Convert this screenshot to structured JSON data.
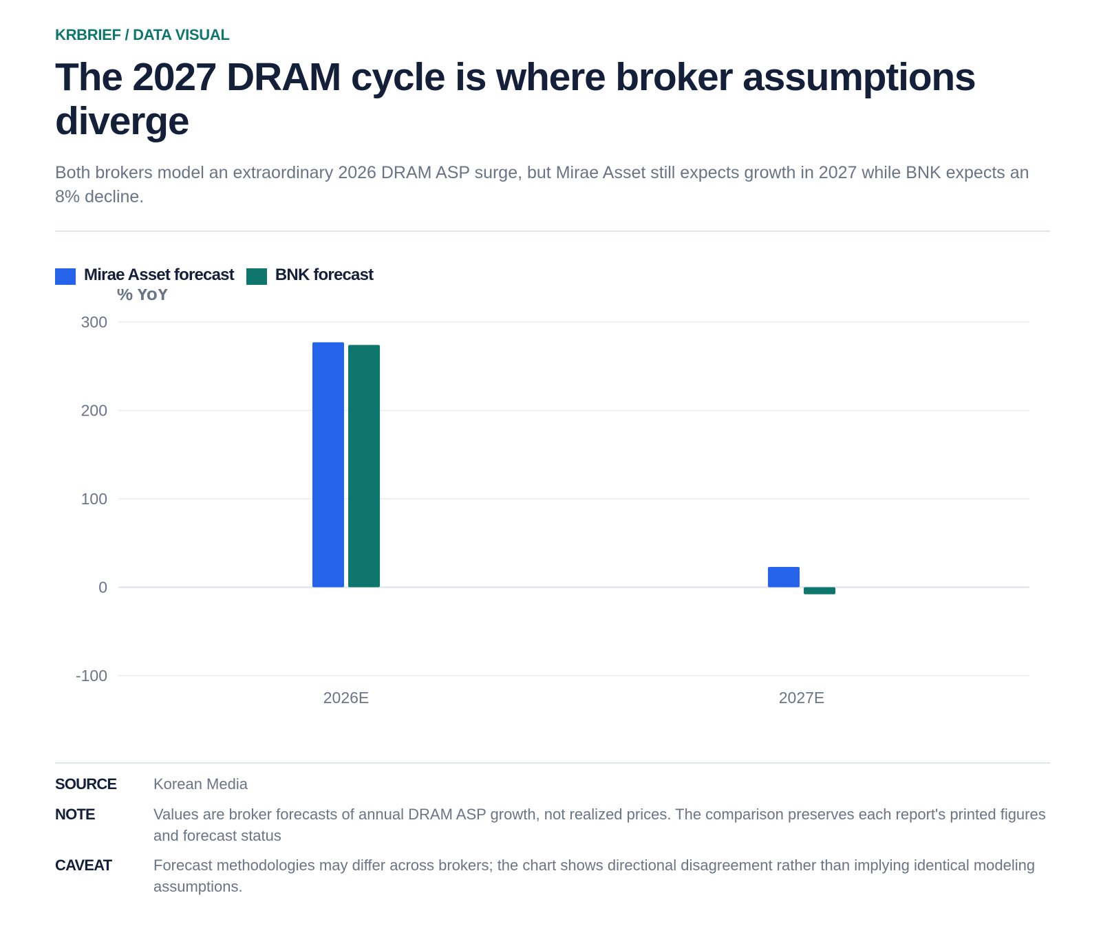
{
  "header": {
    "kicker": "KRBRIEF / DATA VISUAL",
    "title": "The 2027 DRAM cycle is where broker assumptions diverge",
    "subtitle": "Both brokers model an extraordinary 2026 DRAM ASP surge, but Mirae Asset still expects growth in 2027 while BNK expects an 8% decline."
  },
  "legend": {
    "items": [
      {
        "label": "Mirae Asset forecast",
        "color": "#2563eb"
      },
      {
        "label": "BNK forecast",
        "color": "#0f766e"
      }
    ]
  },
  "chart_data": {
    "type": "bar",
    "title": "",
    "xlabel": "",
    "ylabel": "% YoY",
    "categories": [
      "2026E",
      "2027E"
    ],
    "series": [
      {
        "name": "Mirae Asset forecast",
        "color": "#2563eb",
        "values": [
          277,
          23
        ]
      },
      {
        "name": "BNK forecast",
        "color": "#0f766e",
        "values": [
          274,
          -8
        ]
      }
    ],
    "ylim": [
      -100,
      300
    ],
    "yticks": [
      300,
      200,
      100,
      0,
      -100
    ],
    "grid": true,
    "legend_position": "top-left"
  },
  "footer": {
    "source_key": "SOURCE",
    "source_val": "Korean Media",
    "note_key": "NOTE",
    "note_val": "Values are broker forecasts of annual DRAM ASP growth, not realized prices. The comparison preserves each report's printed figures and forecast status",
    "caveat_key": "CAVEAT",
    "caveat_val": "Forecast methodologies may differ across brokers; the chart shows directional disagreement rather than implying identical modeling assumptions."
  }
}
